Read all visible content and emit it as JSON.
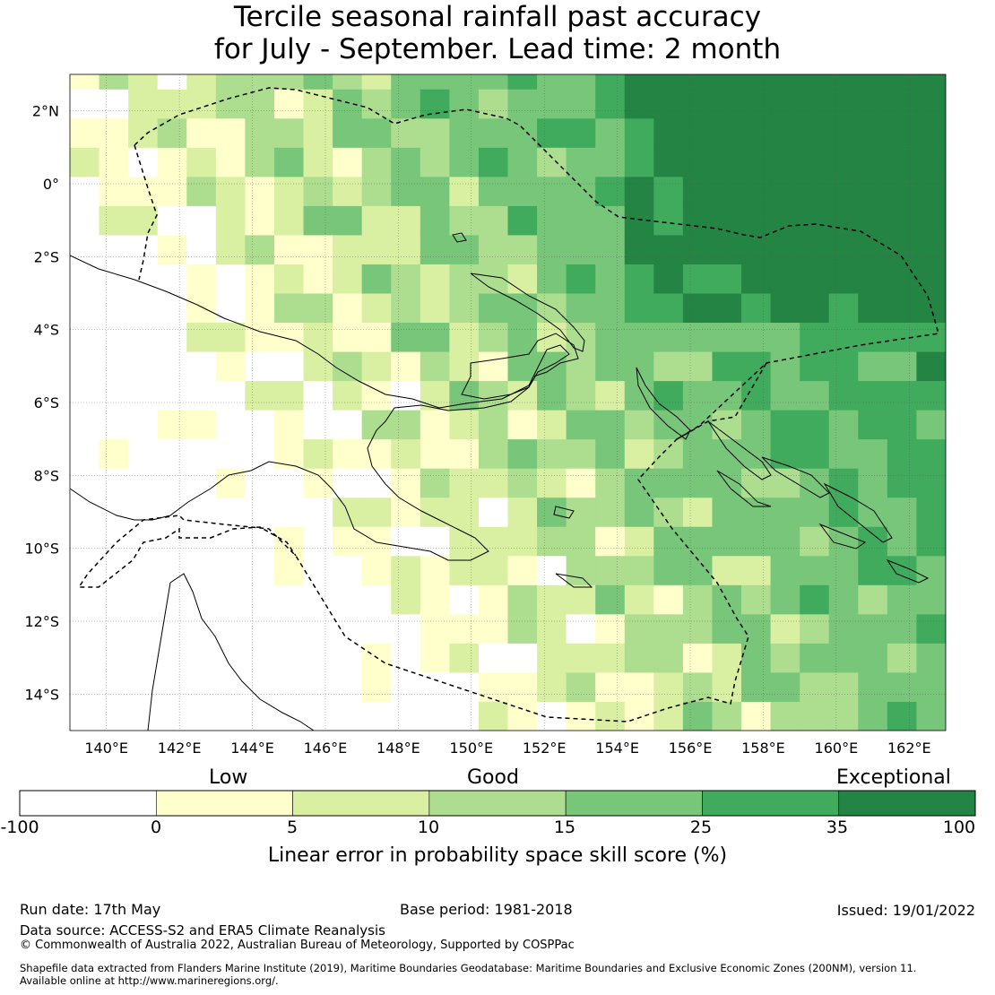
{
  "title": {
    "line1": "Tercile seasonal rainfall past accuracy",
    "line2": "for July - September. Lead time: 2 month"
  },
  "map": {
    "lon_range": [
      139,
      163
    ],
    "lat_range": [
      -15,
      3
    ],
    "lon_ticks": [
      "140°E",
      "142°E",
      "144°E",
      "146°E",
      "148°E",
      "150°E",
      "152°E",
      "154°E",
      "156°E",
      "158°E",
      "160°E",
      "162°E"
    ],
    "lat_ticks": [
      "2°N",
      "0°",
      "2°S",
      "4°S",
      "6°S",
      "8°S",
      "10°S",
      "12°S",
      "14°S"
    ],
    "grid_lines": true,
    "maritime_boundary": "dashed",
    "coastlines": "black outline"
  },
  "colorbar": {
    "group_labels": [
      "Low",
      "Good",
      "Exceptional"
    ],
    "tick_labels": [
      "-100",
      "0",
      "5",
      "10",
      "15",
      "25",
      "35",
      "100"
    ],
    "colors": [
      "#ffffff",
      "#ffffcc",
      "#d9f0a3",
      "#addd8e",
      "#78c679",
      "#41ab5d",
      "#238443"
    ],
    "axis_label": "Linear error in probability space skill score (%)"
  },
  "chart_data": {
    "type": "heatmap",
    "title": "Tercile seasonal rainfall past accuracy for July - September. Lead time: 2 month",
    "xlabel": "",
    "ylabel": "",
    "x_range": [
      139,
      163
    ],
    "y_range": [
      -15,
      3
    ],
    "bin_edges": [
      -100,
      0,
      5,
      10,
      15,
      25,
      35,
      100
    ],
    "legend_title": "Linear error in probability space skill score (%)",
    "legend_position": "bottom"
  },
  "footer": {
    "run_date": "Run date: 17th May",
    "base_period": "Base period: 1981-2018",
    "issued": "Issued: 19/01/2022",
    "data_source": "Data source: ACCESS-S2 and ERA5 Climate Reanalysis",
    "copyright": "© Commonwealth of Australia 2022, Australian Bureau of Meteorology, Supported by COSPPac",
    "shapefile_line1": "Shapefile data extracted from Flanders Marine Institute (2019), Maritime Boundaries Geodatabase: Maritime Boundaries and Exclusive Economic Zones (200NM), version 11.",
    "shapefile_line2": "Available online at http://www.marineregions.org/."
  }
}
